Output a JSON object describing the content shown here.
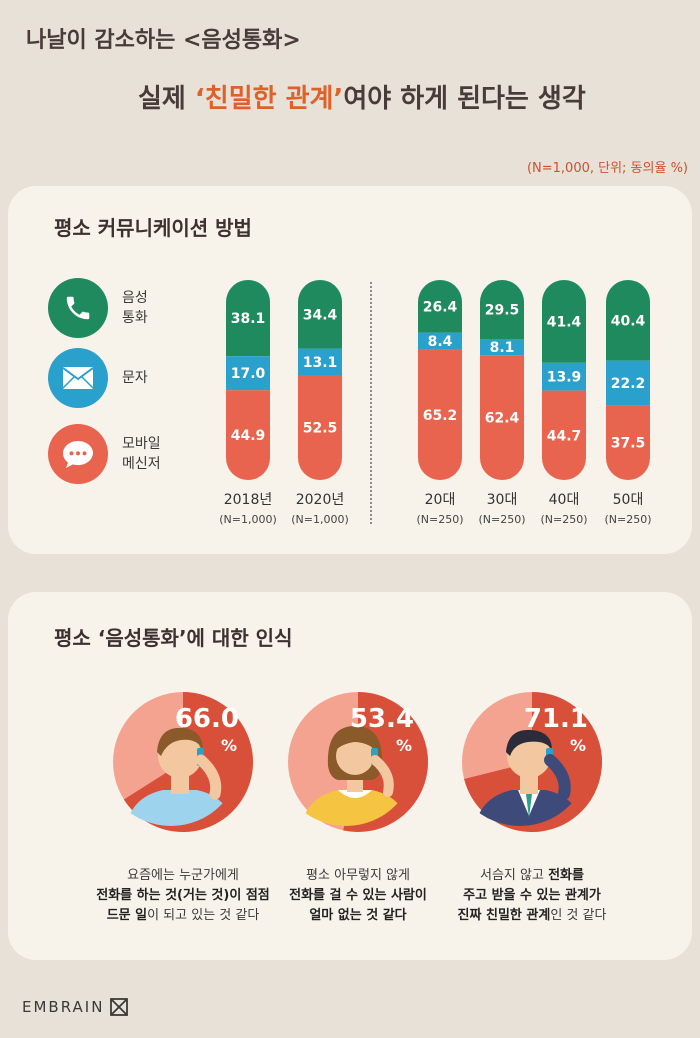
{
  "header": {
    "title_line1": "나날이 감소하는 <음성통화>",
    "title_line2_pre": "실제 ",
    "title_line2_hl": "‘친밀한 관계’",
    "title_line2_post": "여야 하게 된다는 생각",
    "unit_note": "(N=1,000, 단위; 동의율 %)"
  },
  "colors": {
    "voice": "#1e8a5e",
    "text": "#2aa0cc",
    "mobile": "#e8644e",
    "pie_light": "#f5a391",
    "pie_dark": "#d9503a"
  },
  "panel1": {
    "title": "평소 커뮤니케이션 방법",
    "legend": [
      {
        "label": "음성\n통화",
        "icon": "phone-icon"
      },
      {
        "label": "문자",
        "icon": "envelope-icon"
      },
      {
        "label": "모바일\n메신저",
        "icon": "chat-bubble-icon"
      }
    ]
  },
  "chart_data": {
    "type": "bar",
    "stacked": true,
    "categories": [
      "2018년",
      "2020년",
      "20대",
      "30대",
      "40대",
      "50대"
    ],
    "category_sub": [
      "(N=1,000)",
      "(N=1,000)",
      "(N=250)",
      "(N=250)",
      "(N=250)",
      "(N=250)"
    ],
    "series": [
      {
        "name": "음성통화",
        "values": [
          38.1,
          34.4,
          26.4,
          29.5,
          41.4,
          40.4
        ]
      },
      {
        "name": "문자",
        "values": [
          17.0,
          13.1,
          8.4,
          8.1,
          13.9,
          22.2
        ]
      },
      {
        "name": "모바일 메신저",
        "values": [
          44.9,
          52.5,
          65.2,
          62.4,
          44.7,
          37.5
        ]
      }
    ],
    "ylim": [
      0,
      100
    ]
  },
  "panel2": {
    "title": "평소 ‘음성통화’에 대한 인식",
    "pies": [
      {
        "value": "66.0",
        "pct": 66.0,
        "caption_html": "요즘에는 누군가에게<br><b>전화를 하는 것(거는 것)이 점점</b><br><b>드문 일</b>이 되고 있는 것 같다",
        "figure": "man-on-phone"
      },
      {
        "value": "53.4",
        "pct": 53.4,
        "caption_html": "평소 아무렇지 않게<br><b>전화를 걸 수 있는 사람이</b><br><b>얼마 없는 것 같다</b>",
        "figure": "woman-on-phone"
      },
      {
        "value": "71.1",
        "pct": 71.1,
        "caption_html": "서슴지 않고 <b>전화를</b><br><b>주고 받을 수 있는 관계가</b><br><b>진짜 친밀한 관계</b>인 것 같다",
        "figure": "businessman-on-phone"
      }
    ],
    "pct_symbol": "%"
  },
  "footer": {
    "brand": "EMBRAIN"
  }
}
